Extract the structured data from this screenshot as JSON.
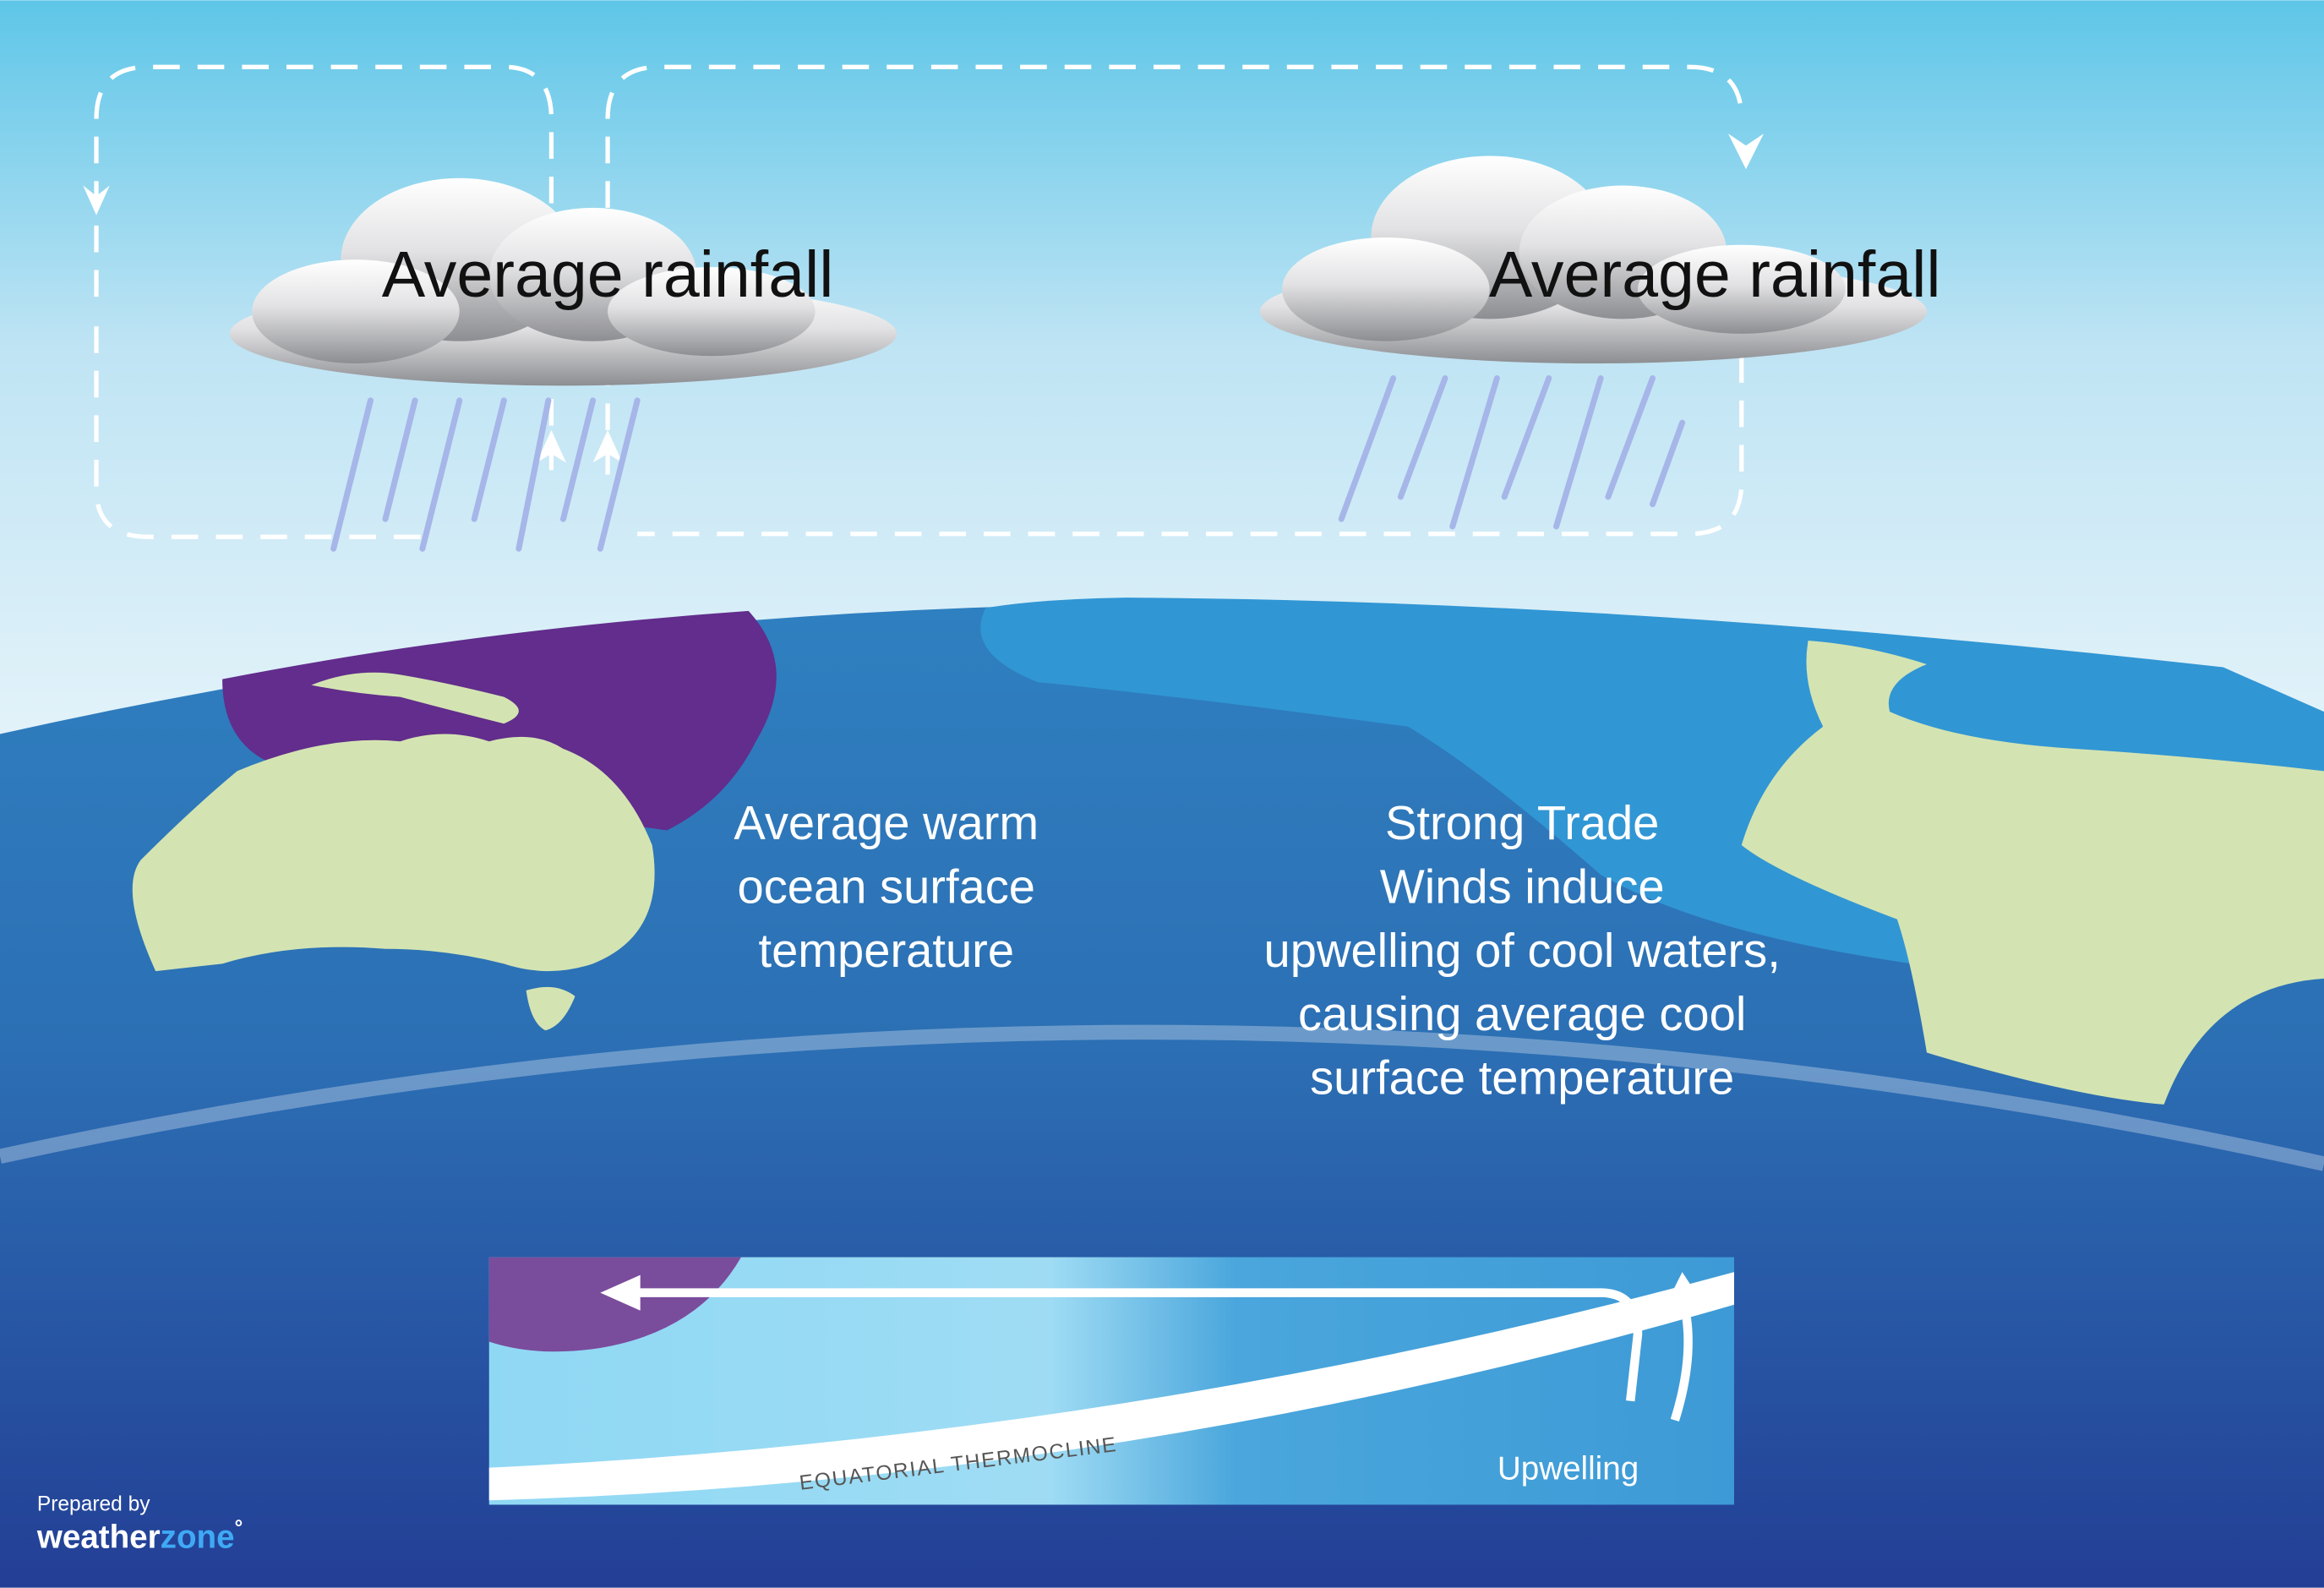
{
  "clouds": [
    {
      "label": "Average rainfall"
    },
    {
      "label": "Average rainfall"
    }
  ],
  "ocean_labels": [
    {
      "lines": [
        "Average warm",
        "ocean surface",
        "temperature"
      ]
    },
    {
      "lines": [
        "Strong Trade",
        "Winds induce",
        "upwelling of cool waters,",
        "causing average cool",
        "surface temperature"
      ]
    }
  ],
  "cross_section": {
    "thermocline_label": "EQUATORIAL THERMOCLINE",
    "upwelling_label": "Upwelling"
  },
  "credit": {
    "prepared_by": "Prepared by",
    "logo_parts": [
      "weather",
      "zone"
    ],
    "logo_mark": "°"
  }
}
